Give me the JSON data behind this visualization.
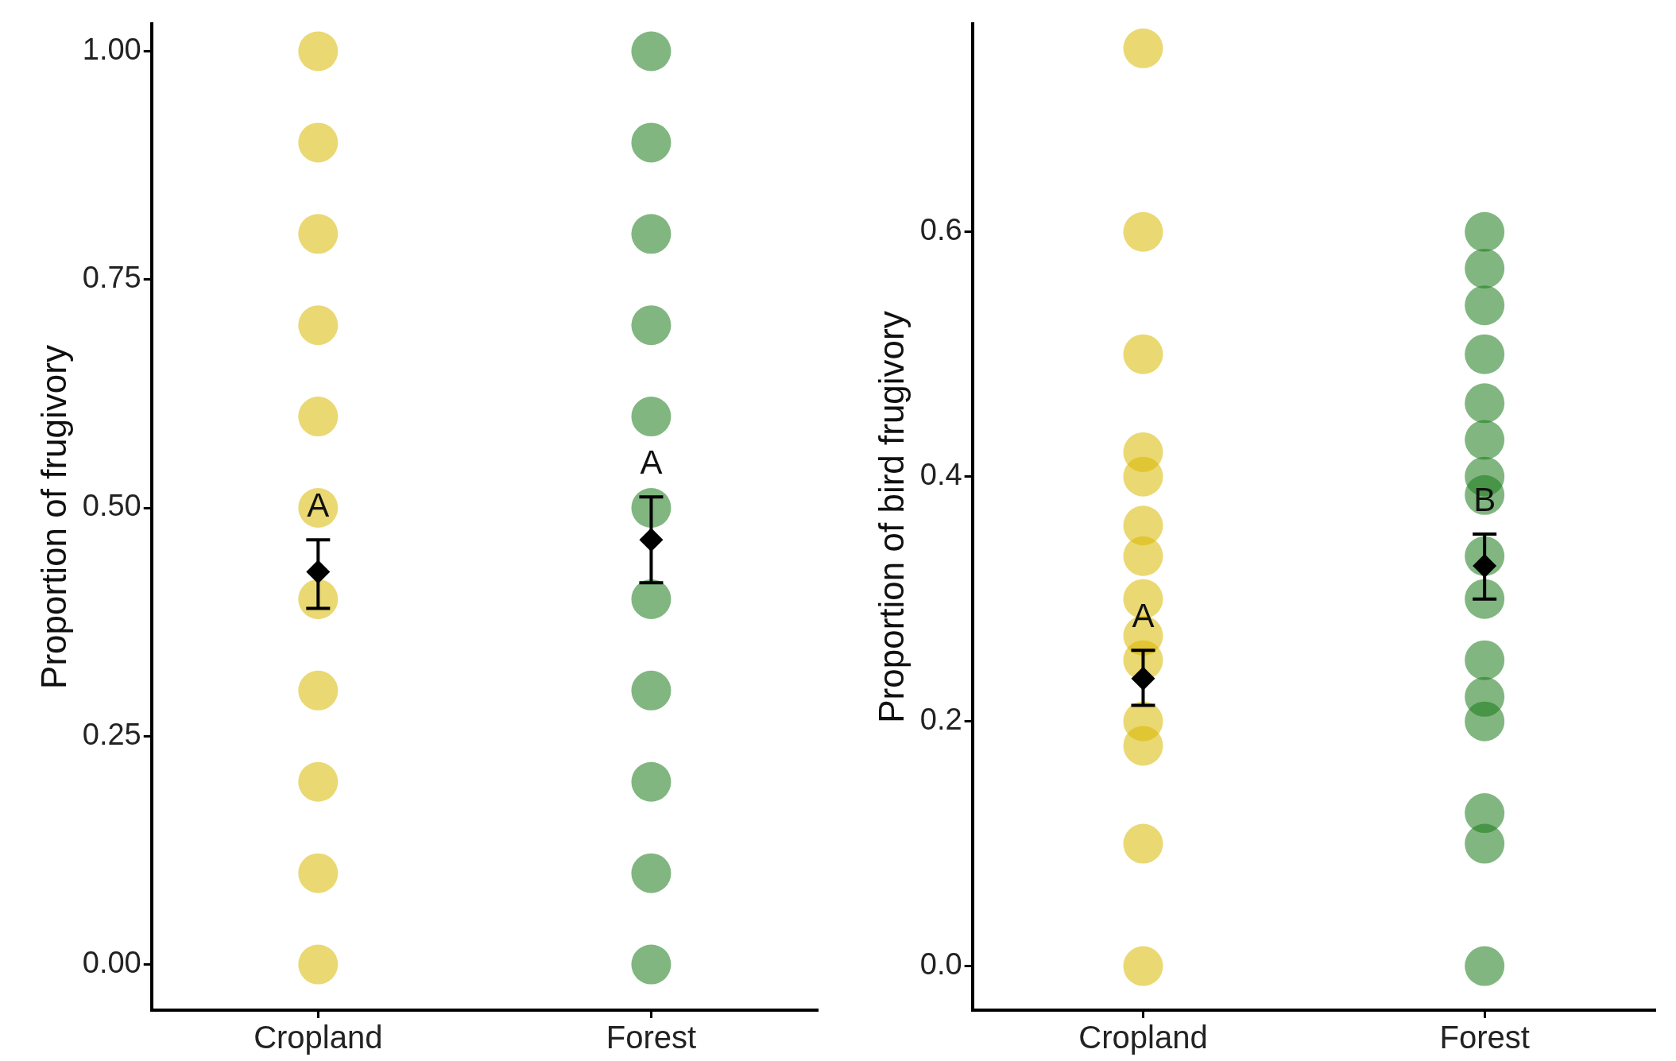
{
  "chart_data": [
    {
      "type": "scatter",
      "ylabel": "Proportion of frugivory",
      "categories": [
        "Cropland",
        "Forest"
      ],
      "ylim": [
        -0.05,
        1.03
      ],
      "yticks": [
        {
          "value": 0,
          "label": "0.00"
        },
        {
          "value": 0.25,
          "label": "0.25"
        },
        {
          "value": 0.5,
          "label": "0.50"
        },
        {
          "value": 0.75,
          "label": "0.75"
        },
        {
          "value": 1,
          "label": "1.00"
        }
      ],
      "grid": false,
      "legend": false,
      "marker": "circle",
      "series": [
        {
          "color": "#d9b800",
          "x": [
            "Cropland",
            "Cropland",
            "Cropland",
            "Cropland",
            "Cropland",
            "Cropland",
            "Cropland",
            "Cropland",
            "Cropland",
            "Cropland",
            "Cropland"
          ],
          "values": [
            1,
            0.9,
            0.8,
            0.7,
            0.6,
            0.5,
            0.4,
            0.3,
            0.2,
            0.1,
            0
          ]
        },
        {
          "color": "#1a7a1a",
          "x": [
            "Forest",
            "Forest",
            "Forest",
            "Forest",
            "Forest",
            "Forest",
            "Forest",
            "Forest",
            "Forest",
            "Forest",
            "Forest"
          ],
          "values": [
            1,
            0.9,
            0.8,
            0.7,
            0.6,
            0.5,
            0.4,
            0.3,
            0.2,
            0.1,
            0
          ]
        },
        {
          "color": "#000000",
          "marker": "diamond",
          "x": [
            "Cropland",
            "Forest"
          ],
          "values": [
            0.43,
            0.465
          ],
          "errors": [
            [
              0.39,
              0.465
            ],
            [
              0.418,
              0.512
            ]
          ]
        }
      ],
      "annotations": [
        "A",
        "A"
      ]
    },
    {
      "type": "scatter",
      "ylabel": "Proportion of bird frugivory",
      "categories": [
        "Cropland",
        "Forest"
      ],
      "ylim": [
        -0.036,
        0.77
      ],
      "yticks": [
        {
          "value": 0,
          "label": "0.0"
        },
        {
          "value": 0.2,
          "label": "0.2"
        },
        {
          "value": 0.4,
          "label": "0.4"
        },
        {
          "value": 0.6,
          "label": "0.6"
        }
      ],
      "grid": false,
      "legend": false,
      "marker": "circle",
      "series": [
        {
          "color": "#d9b800",
          "x": [
            "Cropland",
            "Cropland",
            "Cropland",
            "Cropland",
            "Cropland",
            "Cropland",
            "Cropland",
            "Cropland",
            "Cropland",
            "Cropland",
            "Cropland",
            "Cropland",
            "Cropland",
            "Cropland"
          ],
          "values": [
            0.75,
            0.6,
            0.5,
            0.42,
            0.4,
            0.36,
            0.335,
            0.3,
            0.27,
            0.25,
            0.2,
            0.18,
            0.1,
            0
          ]
        },
        {
          "color": "#1a7a1a",
          "x": [
            "Forest",
            "Forest",
            "Forest",
            "Forest",
            "Forest",
            "Forest",
            "Forest",
            "Forest",
            "Forest",
            "Forest",
            "Forest",
            "Forest",
            "Forest",
            "Forest",
            "Forest",
            "Forest"
          ],
          "values": [
            0.6,
            0.57,
            0.54,
            0.5,
            0.46,
            0.43,
            0.4,
            0.385,
            0.335,
            0.3,
            0.25,
            0.22,
            0.2,
            0.125,
            0.1,
            0
          ]
        },
        {
          "color": "#000000",
          "marker": "diamond",
          "x": [
            "Cropland",
            "Forest"
          ],
          "values": [
            0.235,
            0.327
          ],
          "errors": [
            [
              0.213,
              0.258
            ],
            [
              0.3,
              0.353
            ]
          ]
        }
      ],
      "annotations": [
        "A",
        "B"
      ]
    }
  ]
}
